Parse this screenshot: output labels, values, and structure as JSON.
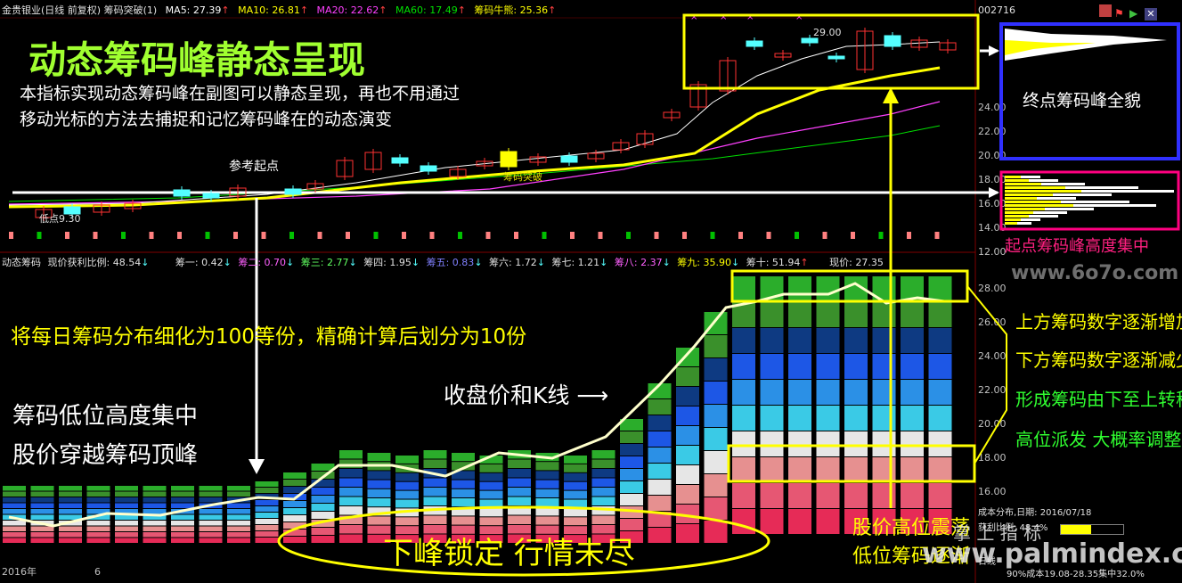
{
  "top_header": {
    "title": "金贵银业(日线 前复权) 筹码突破(1)",
    "ma5": "MA5: 27.39",
    "ma10": "MA10: 26.81",
    "ma20": "MA20: 22.62",
    "ma60": "MA60: 17.49",
    "bull": "筹码牛熊: 25.36",
    "stock_code": "002716"
  },
  "colors": {
    "up": "#ff3232",
    "down": "#54ffff",
    "ma5": "#ffffff",
    "ma10": "#ffff00",
    "ma20": "#ff40ff",
    "ma60": "#00e000",
    "annotation_yellow": "#ffff00",
    "annotation_white": "#ffffff",
    "frame_blue": "#3030ff",
    "frame_pink": "#ff0080"
  },
  "top_chart": {
    "annotations": {
      "big_title": "动态筹码峰静态呈现",
      "desc_line1": "本指标实现动态筹码峰在副图可以静态呈现，再也不用通过",
      "desc_line2": "移动光标的方法去捕捉和记忆筹码峰在的动态演变",
      "ref_start": "参考起点",
      "breakout": "筹码突破",
      "low_label": "低点9.30",
      "high_label": "29.00",
      "end_peak": "终点筹码峰全貌",
      "start_peak": "起点筹码峰高度集中"
    },
    "y_ticks": [
      "24.00",
      "22.00",
      "20.00",
      "18.00",
      "16.00",
      "14.00",
      "12.00"
    ]
  },
  "bottom_header": {
    "name": "动态筹码",
    "profit": "现价获利比例: 48.54",
    "c1": "筹一: 0.42",
    "c2": "筹二: 0.70",
    "c3": "筹三: 2.77",
    "c4": "筹四: 1.95",
    "c5": "筹五: 0.83",
    "c6": "筹六: 1.72",
    "c7": "筹七: 1.21",
    "c8": "筹八: 2.37",
    "c9": "筹九: 35.90",
    "c10": "筹十: 51.94",
    "price": "现价: 27.35"
  },
  "bottom_chart": {
    "annotations": {
      "split": "将每日筹码分布细化为100等份，精确计算后划分为10份",
      "kline": "收盘价和K线",
      "low_conc1": "筹码低位高度集中",
      "low_conc2": "股价穿越筹码顶峰",
      "lock": "下峰锁定 行情未尽",
      "right1": "上方筹码数字逐渐增加",
      "right2": "下方筹码数字逐渐减少",
      "right3": "形成筹码由下至上转移",
      "right4": "高位派发  大概率调整",
      "high_shock1": "股价高位震荡",
      "high_shock2": "低位筹码逐渐"
    },
    "y_ticks": [
      "28.00",
      "26.00",
      "24.00",
      "22.00",
      "20.00",
      "18.00",
      "16.00"
    ],
    "x_labels": [
      "2016年",
      "6"
    ]
  },
  "side_panel": {
    "date_label": "成本分布,日期: 2016/07/18",
    "profit_row": "获利比例: 48.4%",
    "cost_row": "90%成本19.08-28.35集中32.0%",
    "label_row": "日线"
  },
  "watermarks": [
    "www.6o7o.com",
    "www.palmindex.com",
    "掌 上 指 标"
  ]
}
